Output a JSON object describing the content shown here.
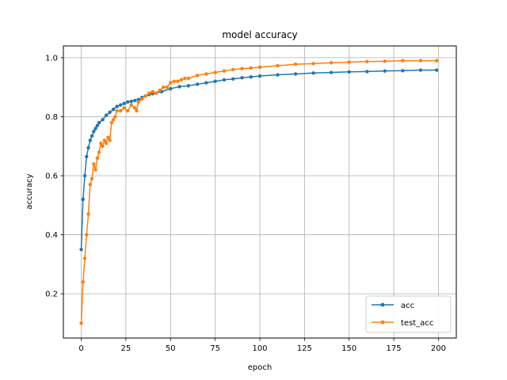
{
  "chart_data": {
    "type": "line",
    "title": "model accuracy",
    "xlabel": "epoch",
    "ylabel": "accuracy",
    "xlim": [
      -10,
      210
    ],
    "ylim": [
      0.05,
      1.04
    ],
    "xticks": [
      0,
      25,
      50,
      75,
      100,
      125,
      150,
      175,
      200
    ],
    "yticks": [
      0.2,
      0.4,
      0.6,
      0.8,
      1.0
    ],
    "xtick_labels": [
      "0",
      "25",
      "50",
      "75",
      "100",
      "125",
      "150",
      "175",
      "200"
    ],
    "ytick_labels": [
      "0.2",
      "0.4",
      "0.6",
      "0.8",
      "1.0"
    ],
    "grid": true,
    "legend_position": "bottom-right",
    "colors": {
      "acc": "#1f77b4",
      "test_acc": "#ff7f0e"
    },
    "series": [
      {
        "name": "acc",
        "color": "#1f77b4",
        "x": [
          0,
          1,
          2,
          3,
          4,
          5,
          6,
          7,
          8,
          9,
          10,
          12,
          14,
          16,
          18,
          20,
          22,
          24,
          26,
          28,
          30,
          32,
          34,
          36,
          38,
          40,
          45,
          50,
          55,
          60,
          65,
          70,
          75,
          80,
          85,
          90,
          95,
          100,
          110,
          120,
          130,
          140,
          150,
          160,
          170,
          180,
          190,
          199
        ],
        "y": [
          0.35,
          0.52,
          0.6,
          0.665,
          0.695,
          0.72,
          0.735,
          0.75,
          0.76,
          0.77,
          0.78,
          0.79,
          0.805,
          0.815,
          0.825,
          0.835,
          0.84,
          0.845,
          0.85,
          0.852,
          0.855,
          0.858,
          0.865,
          0.87,
          0.875,
          0.878,
          0.885,
          0.895,
          0.902,
          0.905,
          0.91,
          0.915,
          0.92,
          0.925,
          0.928,
          0.932,
          0.935,
          0.938,
          0.942,
          0.945,
          0.948,
          0.95,
          0.952,
          0.953,
          0.955,
          0.956,
          0.958,
          0.958
        ]
      },
      {
        "name": "test_acc",
        "color": "#ff7f0e",
        "x": [
          0,
          1,
          2,
          3,
          4,
          5,
          6,
          7,
          8,
          9,
          10,
          11,
          12,
          13,
          14,
          15,
          16,
          17,
          18,
          19,
          20,
          22,
          24,
          26,
          28,
          30,
          31,
          32,
          34,
          36,
          38,
          40,
          42,
          44,
          46,
          48,
          50,
          52,
          54,
          56,
          58,
          60,
          65,
          70,
          75,
          80,
          85,
          90,
          95,
          100,
          110,
          120,
          130,
          140,
          150,
          160,
          170,
          180,
          190,
          199
        ],
        "y": [
          0.1,
          0.24,
          0.32,
          0.4,
          0.47,
          0.57,
          0.59,
          0.64,
          0.62,
          0.66,
          0.68,
          0.71,
          0.7,
          0.72,
          0.71,
          0.73,
          0.72,
          0.78,
          0.79,
          0.8,
          0.82,
          0.82,
          0.83,
          0.82,
          0.84,
          0.83,
          0.82,
          0.85,
          0.86,
          0.87,
          0.88,
          0.885,
          0.88,
          0.89,
          0.9,
          0.9,
          0.915,
          0.92,
          0.92,
          0.925,
          0.93,
          0.93,
          0.94,
          0.945,
          0.95,
          0.955,
          0.96,
          0.963,
          0.965,
          0.968,
          0.973,
          0.978,
          0.98,
          0.983,
          0.985,
          0.987,
          0.988,
          0.99,
          0.99,
          0.99
        ]
      }
    ]
  }
}
